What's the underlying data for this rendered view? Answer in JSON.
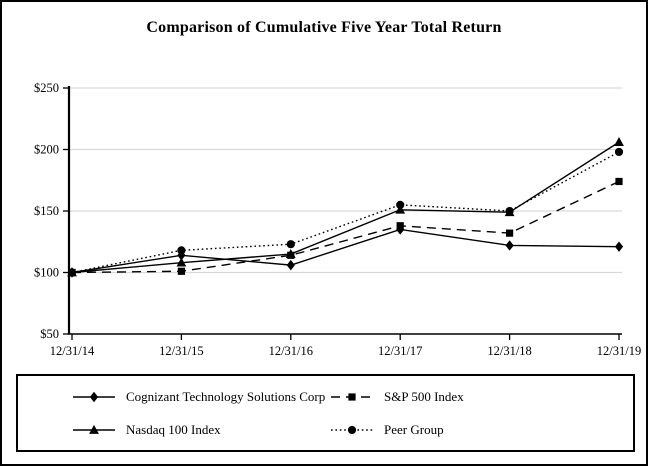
{
  "title": "Comparison of Cumulative Five Year Total Return",
  "chart_data": {
    "type": "line",
    "title": "Comparison of Cumulative Five Year Total Return",
    "categories": [
      "12/31/14",
      "12/31/15",
      "12/31/16",
      "12/31/17",
      "12/31/18",
      "12/31/19"
    ],
    "series": [
      {
        "name": "Cognizant Technology Solutions Corp",
        "line": "solid",
        "marker": "diamond",
        "values": [
          100,
          114,
          106,
          135,
          122,
          121
        ]
      },
      {
        "name": "S&P 500 Index",
        "line": "dashed",
        "marker": "square",
        "values": [
          100,
          101,
          114,
          138,
          132,
          174
        ]
      },
      {
        "name": "Nasdaq 100 Index",
        "line": "solid",
        "marker": "triangle",
        "values": [
          100,
          108,
          115,
          151,
          149,
          206
        ]
      },
      {
        "name": "Peer Group",
        "line": "dotted",
        "marker": "circle",
        "values": [
          100,
          118,
          123,
          155,
          150,
          198
        ]
      }
    ],
    "y_ticks": [
      {
        "label": "$250",
        "value": 250
      },
      {
        "label": "$200",
        "value": 200
      },
      {
        "label": "$150",
        "value": 150
      },
      {
        "label": "$100",
        "value": 100
      },
      {
        "label": "$50",
        "value": 50
      }
    ],
    "ylim": [
      50,
      250
    ],
    "xlabel": "",
    "ylabel": "",
    "grid": true,
    "legend_position": "bottom-box",
    "colors": {
      "series": "#000000",
      "grid": "#d9d9d9",
      "axis": "#000000",
      "background": "#ffffff"
    }
  }
}
